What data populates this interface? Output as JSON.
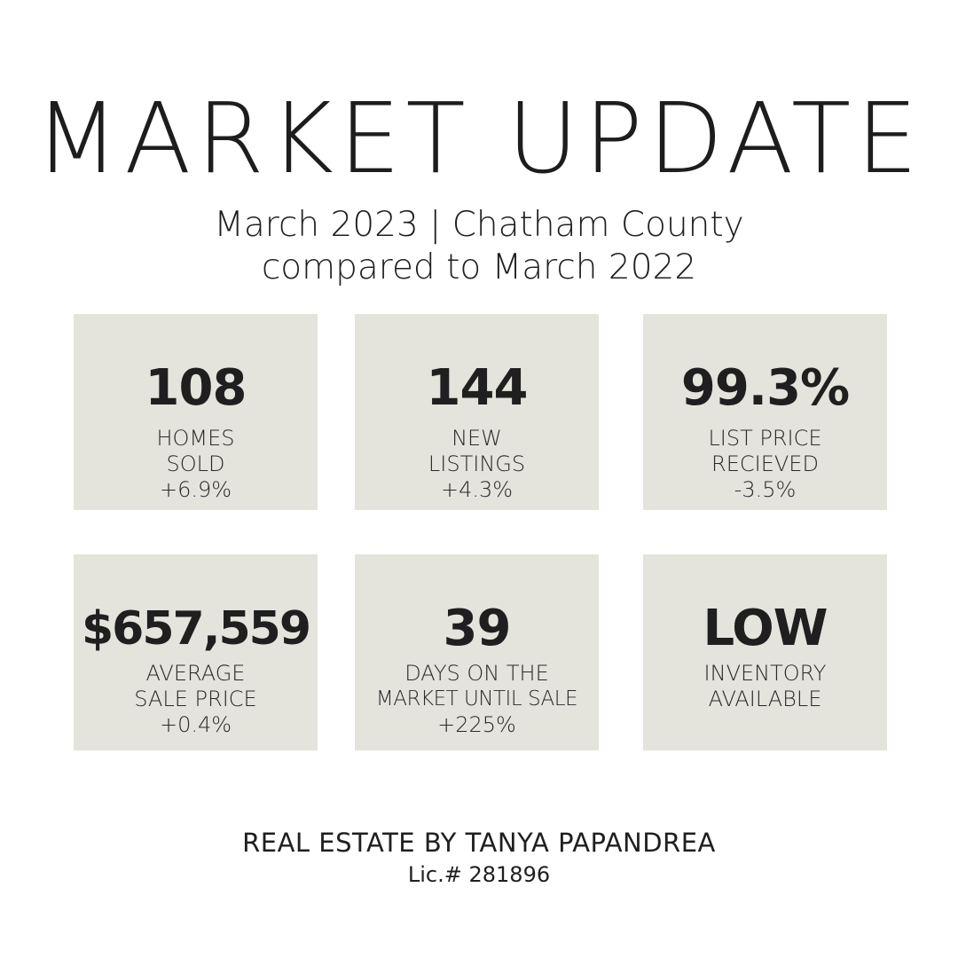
{
  "header": {
    "title": "MARKET UPDATE",
    "subtitle_line1": "March 2023 | Chatham County",
    "subtitle_line2": "compared to March 2022"
  },
  "stats": [
    {
      "value": "108",
      "label_lines": [
        "HOMES",
        "SOLD",
        "+6.9%"
      ]
    },
    {
      "value": "144",
      "label_lines": [
        "NEW",
        "LISTINGS",
        "+4.3%"
      ]
    },
    {
      "value": "99.3%",
      "label_lines": [
        "LIST PRICE",
        "RECIEVED",
        "-3.5%"
      ]
    },
    {
      "value": "$657,559",
      "label_lines": [
        "AVERAGE",
        "SALE PRICE",
        "+0.4%"
      ]
    },
    {
      "value": "39",
      "label_lines": [
        "DAYS ON THE",
        "MARKET UNTIL SALE",
        "+225%"
      ]
    },
    {
      "value": "LOW",
      "label_lines": [
        "INVENTORY",
        "AVAILABLE"
      ]
    }
  ],
  "footer": {
    "name": "REAL ESTATE BY TANYA PAPANDREA",
    "license": "Lic.# 281896"
  },
  "colors": {
    "background": "#ffffff",
    "card": "#e4e3dc",
    "text": "#1f1f1f"
  }
}
